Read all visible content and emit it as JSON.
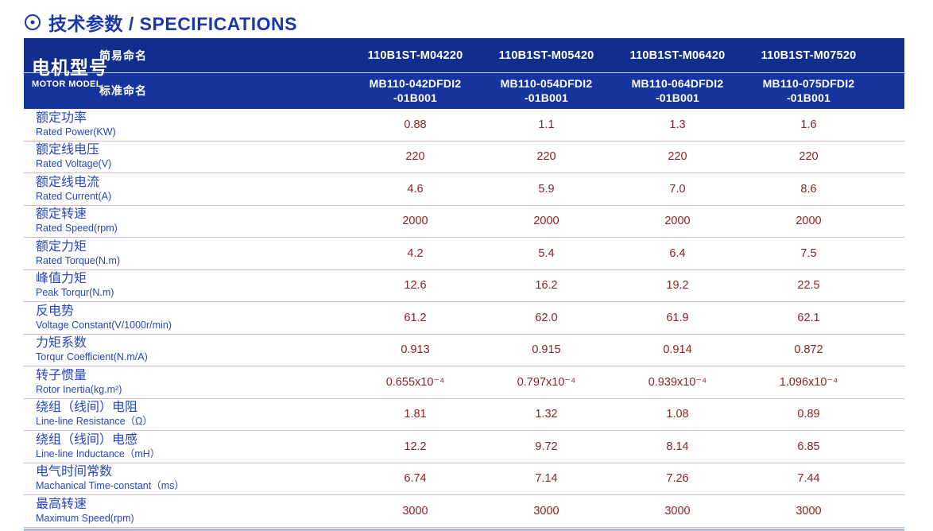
{
  "page_title": {
    "icon": "circled-dot",
    "text": "技术参数 / SPECIFICATIONS"
  },
  "colors": {
    "accent_blue": "#1B38A8",
    "header_navy_top": "#112D8E",
    "header_navy_bottom": "#16349E",
    "label_blue": "#2646BE",
    "value_maroon": "#8A2321",
    "separator_pink": "#E3B4B4",
    "bottom_rule_blue": "#A7B9DC"
  },
  "table": {
    "header": {
      "model_label_cn": "电机型号",
      "model_label_en": "MOTOR MODEL",
      "simple_name_label": "简易命名",
      "standard_name_label": "标准命名",
      "simple_names": [
        "110B1ST-M04220",
        "110B1ST-M05420",
        "110B1ST-M06420",
        "110B1ST-M07520"
      ],
      "standard_names": [
        {
          "line1": "MB110-042DFDI2",
          "line2": "-01B001"
        },
        {
          "line1": "MB110-054DFDI2",
          "line2": "-01B001"
        },
        {
          "line1": "MB110-064DFDI2",
          "line2": "-01B001"
        },
        {
          "line1": "MB110-075DFDI2",
          "line2": "-01B001"
        }
      ]
    },
    "rows": [
      {
        "label_cn": "额定功率",
        "label_en": "Rated Power(KW)",
        "values": [
          "0.88",
          "1.1",
          "1.3",
          "1.6"
        ]
      },
      {
        "label_cn": "额定线电压",
        "label_en": "Rated Voltage(V)",
        "values": [
          "220",
          "220",
          "220",
          "220"
        ]
      },
      {
        "label_cn": "额定线电流",
        "label_en": "Rated Current(A)",
        "values": [
          "4.6",
          "5.9",
          "7.0",
          "8.6"
        ]
      },
      {
        "label_cn": "额定转速",
        "label_en": "Rated Speed(rpm)",
        "values": [
          "2000",
          "2000",
          "2000",
          "2000"
        ]
      },
      {
        "label_cn": "额定力矩",
        "label_en": "Rated Torque(N.m)",
        "values": [
          "4.2",
          "5.4",
          "6.4",
          "7.5"
        ]
      },
      {
        "label_cn": "峰值力矩",
        "label_en": "Peak Torqur(N.m)",
        "values": [
          "12.6",
          "16.2",
          "19.2",
          "22.5"
        ]
      },
      {
        "label_cn": "反电势",
        "label_en": "Voltage Constant(V/1000r/min)",
        "values": [
          "61.2",
          "62.0",
          "61.9",
          "62.1"
        ]
      },
      {
        "label_cn": "力矩系数",
        "label_en": "Torqur Coefficient(N.m/A)",
        "values": [
          "0.913",
          "0.915",
          "0.914",
          "0.872"
        ]
      },
      {
        "label_cn": "转子惯量",
        "label_en": "Rotor Inertia(kg.m²)",
        "values": [
          "0.655x10⁻⁴",
          "0.797x10⁻⁴",
          "0.939x10⁻⁴",
          "1.096x10⁻⁴"
        ]
      },
      {
        "label_cn": "绕组（线间）电阻",
        "label_en": "Line-line Resistance（Ω）",
        "values": [
          "1.81",
          "1.32",
          "1.08",
          "0.89"
        ]
      },
      {
        "label_cn": "绕组（线间）电感",
        "label_en": "Line-line Inductance（mH）",
        "values": [
          "12.2",
          "9.72",
          "8.14",
          "6.85"
        ]
      },
      {
        "label_cn": "电气时间常数",
        "label_en": "Machanical Time-constant（ms）",
        "values": [
          "6.74",
          "7.14",
          "7.26",
          "7.44"
        ]
      },
      {
        "label_cn": "最高转速",
        "label_en": "Maximum Speed(rpm)",
        "values": [
          "3000",
          "3000",
          "3000",
          "3000"
        ]
      }
    ]
  }
}
